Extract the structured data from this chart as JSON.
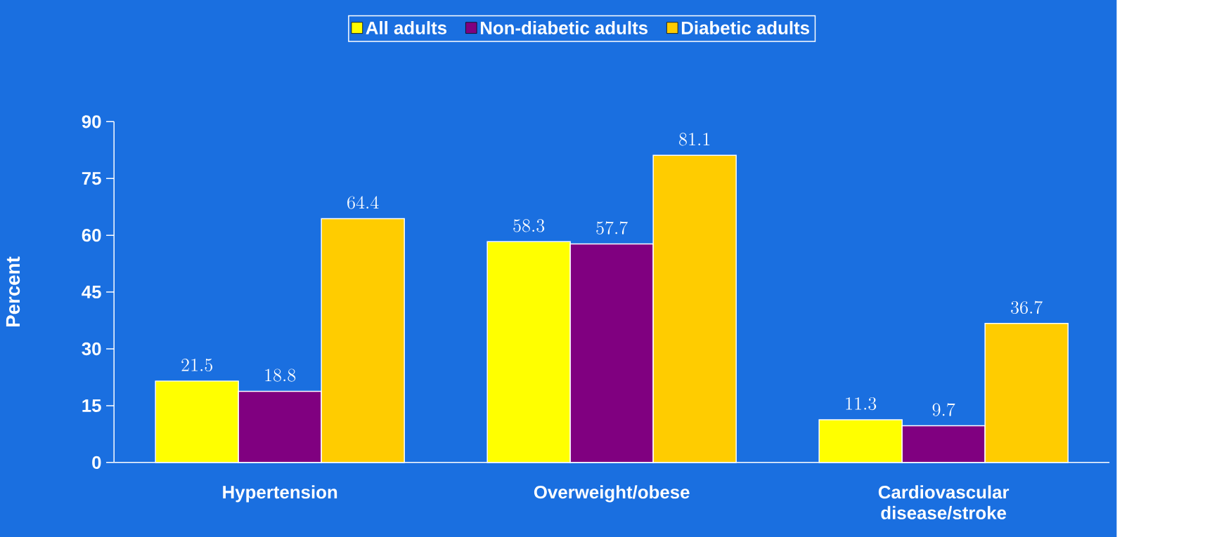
{
  "chart_data": {
    "type": "bar",
    "ylabel": "Percent",
    "categories": [
      "Hypertension",
      "Overweight/obese",
      "Cardiovascular disease/stroke"
    ],
    "series": [
      {
        "name": "All adults",
        "color": "#ffff00",
        "values": [
          21.5,
          58.3,
          11.3
        ]
      },
      {
        "name": "Non-diabetic adults",
        "color": "#800080",
        "values": [
          18.8,
          57.7,
          9.7
        ]
      },
      {
        "name": "Diabetic adults",
        "color": "#ffcc00",
        "values": [
          64.4,
          81.1,
          36.7
        ]
      }
    ],
    "ylim": [
      0,
      90
    ],
    "yticks": [
      0,
      15,
      30,
      45,
      60,
      75,
      90
    ],
    "data_labels": true,
    "legend": "top",
    "grid": false
  }
}
